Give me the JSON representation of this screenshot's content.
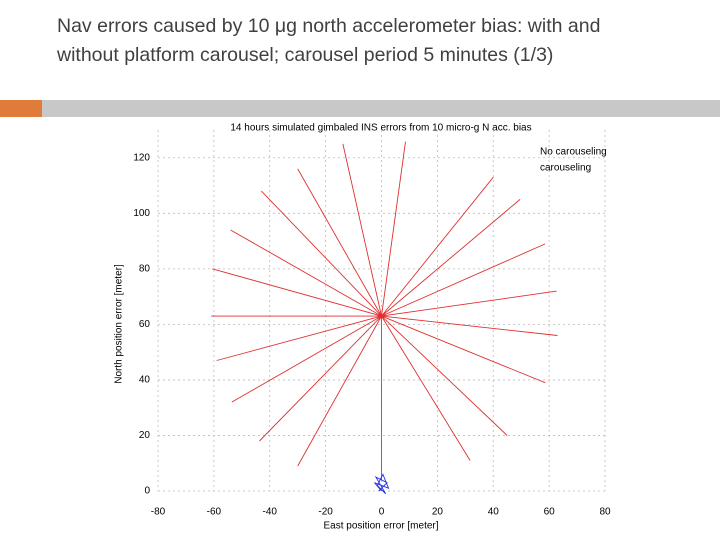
{
  "slide_title": "Nav errors caused by 10 μg north accelerometer bias: with and without platform carousel; carousel period 5 minutes (1/3)",
  "chart_data": {
    "type": "line",
    "title": "14 hours simulated gimbaled INS errors from 10 micro-g N acc. bias",
    "xlabel": "East position error [meter]",
    "ylabel": "North position error [meter]",
    "xlim": [
      -80,
      80
    ],
    "ylim": [
      0,
      130
    ],
    "xticks": [
      -80,
      -60,
      -40,
      -20,
      0,
      20,
      40,
      60,
      80
    ],
    "yticks": [
      0,
      20,
      40,
      60,
      80,
      100,
      120
    ],
    "grid": true,
    "legend": "top-right",
    "series": [
      {
        "name": "No carouseling",
        "color": "#e03030",
        "x": [
          0,
          8.6,
          0,
          -13.8,
          0,
          -30,
          0,
          -43,
          0,
          -54,
          0,
          -60.6,
          0,
          -61,
          0,
          -59,
          0,
          -53.6,
          0,
          -43.7,
          0,
          -30,
          0,
          0,
          0,
          31.7,
          0,
          45,
          0,
          58.6,
          0,
          63,
          0,
          62.7,
          0,
          58.6,
          0,
          49.6,
          0,
          40,
          0
        ],
        "y": [
          63,
          125.8,
          63,
          125,
          63,
          116,
          63,
          108,
          63,
          94,
          63,
          80,
          63,
          63,
          63,
          47,
          63,
          32,
          63,
          18,
          63,
          9,
          63,
          4,
          63,
          11,
          63,
          20,
          63,
          39,
          63,
          56,
          63,
          72,
          63,
          89,
          63,
          105,
          63,
          113,
          63
        ]
      },
      {
        "name": "carouseling",
        "color": "#2030e0",
        "x": [
          -1,
          2,
          -2,
          1.5,
          -1.5,
          0.5,
          2.5,
          -2.5,
          0
        ],
        "y": [
          0,
          3,
          5,
          -1,
          2,
          6,
          1,
          3,
          0
        ]
      }
    ]
  }
}
